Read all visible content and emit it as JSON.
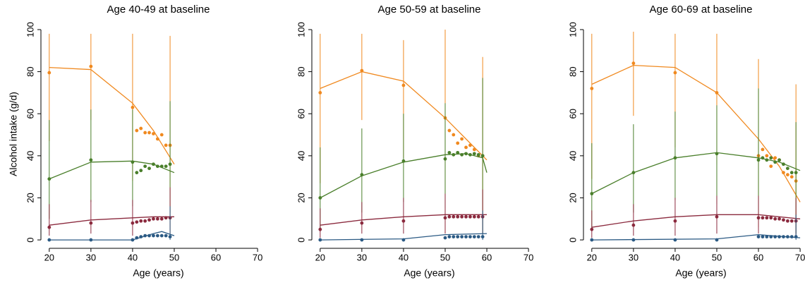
{
  "chart_data": [
    {
      "type": "scatter-line",
      "title": "Age 40-49 at baseline",
      "x_label": "Age (years)",
      "y_label": "Alcohol intake (g/d)",
      "xlim": [
        18,
        71
      ],
      "ylim": [
        -4,
        102
      ],
      "xticks": [
        20,
        30,
        40,
        50,
        60,
        70
      ],
      "yticks": [
        0,
        20,
        40,
        60,
        80,
        100
      ],
      "series": [
        {
          "color": "#f0891f",
          "x": [
            20,
            30,
            40,
            41,
            42,
            43,
            44,
            45,
            46,
            47,
            48,
            49
          ],
          "values": [
            79.5,
            82.5,
            63,
            52,
            53,
            51,
            51,
            50.5,
            48,
            50,
            45,
            45
          ],
          "line_x": [
            20,
            30,
            40,
            45,
            50
          ],
          "line_values": [
            82,
            81,
            65,
            52,
            36
          ],
          "bar_x": [
            20,
            30,
            40,
            49
          ],
          "bar_low": [
            47,
            57,
            28,
            2
          ],
          "bar_high": [
            98,
            98,
            98,
            97
          ]
        },
        {
          "color": "#4a7f2b",
          "x": [
            20,
            30,
            40,
            41,
            42,
            43,
            44,
            45,
            46,
            47,
            48,
            49
          ],
          "values": [
            29,
            38,
            37,
            32,
            33,
            35,
            34,
            36,
            35,
            35,
            35,
            36
          ],
          "line_x": [
            20,
            30,
            40,
            45,
            50
          ],
          "line_values": [
            29,
            37,
            37.5,
            36,
            32
          ],
          "bar_x": [
            20,
            30,
            40,
            49
          ],
          "bar_low": [
            10,
            18,
            16,
            13
          ],
          "bar_high": [
            57,
            62,
            62,
            66
          ]
        },
        {
          "color": "#8b2a3e",
          "x": [
            20,
            30,
            40,
            41,
            42,
            43,
            44,
            45,
            46,
            47,
            48,
            49
          ],
          "values": [
            6,
            8,
            8,
            8.5,
            9,
            9,
            9.5,
            10,
            10,
            10,
            10.5,
            10.5
          ],
          "line_x": [
            20,
            30,
            40,
            45,
            50
          ],
          "line_values": [
            7,
            9.5,
            10.5,
            11,
            11
          ],
          "bar_x": [
            20,
            30,
            40,
            49
          ],
          "bar_low": [
            2,
            3,
            2,
            3
          ],
          "bar_high": [
            17,
            19,
            19,
            25
          ]
        },
        {
          "color": "#2b5a84",
          "x": [
            20,
            30,
            40,
            41,
            42,
            43,
            44,
            45,
            46,
            47,
            48,
            49
          ],
          "values": [
            0,
            0,
            0,
            1,
            1.5,
            2,
            2,
            2,
            2,
            2,
            2,
            1.5
          ],
          "line_x": [
            20,
            30,
            40,
            45,
            47,
            50
          ],
          "line_values": [
            0,
            0,
            0,
            3,
            4,
            2
          ],
          "bar_x": [
            49
          ],
          "bar_low": [
            0
          ],
          "bar_high": [
            16
          ]
        }
      ]
    },
    {
      "type": "scatter-line",
      "title": "Age 50-59 at baseline",
      "x_label": "Age (years)",
      "xlim": [
        18,
        71
      ],
      "ylim": [
        -4,
        102
      ],
      "xticks": [
        20,
        30,
        40,
        50,
        60,
        70
      ],
      "yticks": [
        0,
        20,
        40,
        60,
        80,
        100
      ],
      "series": [
        {
          "color": "#f0891f",
          "x": [
            20,
            30,
            40,
            50,
            51,
            52,
            53,
            54,
            55,
            56,
            57,
            58,
            59
          ],
          "values": [
            70,
            80.5,
            73.5,
            58,
            52,
            50,
            46,
            48,
            44,
            45,
            43,
            40,
            40
          ],
          "line_x": [
            20,
            30,
            40,
            50,
            55,
            60
          ],
          "line_values": [
            72,
            80,
            75.5,
            58,
            48,
            38
          ],
          "bar_x": [
            20,
            30,
            40,
            50,
            59
          ],
          "bar_low": [
            27,
            57,
            39,
            3,
            3
          ],
          "bar_high": [
            98,
            98,
            95,
            100,
            87
          ]
        },
        {
          "color": "#4a7f2b",
          "x": [
            20,
            30,
            40,
            50,
            51,
            52,
            53,
            54,
            55,
            56,
            57,
            58,
            59
          ],
          "values": [
            20,
            31,
            37.5,
            38.5,
            41.5,
            40.5,
            41.5,
            40.5,
            41,
            40.5,
            41,
            40.5,
            40
          ],
          "line_x": [
            20,
            30,
            40,
            50,
            55,
            59,
            60
          ],
          "line_values": [
            20,
            30.5,
            37,
            40.5,
            41,
            39,
            32
          ],
          "bar_x": [
            20,
            30,
            40,
            50,
            59
          ],
          "bar_low": [
            4,
            13,
            18,
            15,
            3
          ],
          "bar_high": [
            44,
            53,
            60,
            65,
            77
          ]
        },
        {
          "color": "#8b2a3e",
          "x": [
            20,
            30,
            40,
            50,
            51,
            52,
            53,
            54,
            55,
            56,
            57,
            58,
            59
          ],
          "values": [
            5,
            8,
            9,
            10.5,
            11,
            11,
            11,
            11,
            11,
            11,
            11,
            11,
            11
          ],
          "line_x": [
            20,
            30,
            40,
            50,
            60
          ],
          "line_values": [
            7,
            9.5,
            11,
            12,
            12
          ],
          "bar_x": [
            20,
            30,
            40,
            50,
            59
          ],
          "bar_low": [
            1,
            3,
            3,
            3,
            3
          ],
          "bar_high": [
            15,
            18,
            20,
            22,
            24
          ]
        },
        {
          "color": "#2b5a84",
          "x": [
            20,
            30,
            40,
            50,
            51,
            52,
            53,
            54,
            55,
            56,
            57,
            58,
            59
          ],
          "values": [
            0,
            0,
            0,
            1,
            1.5,
            1.5,
            1.5,
            1.5,
            1.5,
            1.5,
            1.5,
            1.5,
            1.5
          ],
          "line_x": [
            20,
            40,
            50,
            60
          ],
          "line_values": [
            0,
            0.5,
            2.5,
            3
          ],
          "bar_x": [
            59
          ],
          "bar_low": [
            0
          ],
          "bar_high": [
            14
          ]
        }
      ]
    },
    {
      "type": "scatter-line",
      "title": "Age 60-69 at baseline",
      "x_label": "Age (years)",
      "xlim": [
        18,
        71
      ],
      "ylim": [
        -4,
        102
      ],
      "xticks": [
        20,
        30,
        40,
        50,
        60,
        70
      ],
      "yticks": [
        0,
        20,
        40,
        60,
        80,
        100
      ],
      "series": [
        {
          "color": "#f0891f",
          "x": [
            20,
            30,
            40,
            50,
            60,
            61,
            62,
            63,
            64,
            65,
            66,
            67,
            68,
            69
          ],
          "values": [
            72,
            84,
            79.5,
            70,
            40,
            43,
            40,
            35,
            39,
            38,
            32,
            31,
            30,
            28
          ],
          "line_x": [
            20,
            30,
            40,
            50,
            60,
            65,
            70
          ],
          "line_values": [
            74,
            83,
            82,
            70,
            48,
            35,
            18
          ],
          "bar_x": [
            20,
            30,
            40,
            50,
            60,
            69
          ],
          "bar_low": [
            29,
            59,
            44,
            36,
            6,
            3
          ],
          "bar_high": [
            98,
            99,
            98,
            98,
            86,
            74
          ]
        },
        {
          "color": "#4a7f2b",
          "x": [
            20,
            30,
            40,
            50,
            60,
            61,
            62,
            63,
            64,
            65,
            66,
            67,
            68,
            69
          ],
          "values": [
            22,
            32,
            39,
            41,
            38,
            39,
            38,
            39,
            37,
            38,
            36,
            34,
            32,
            32
          ],
          "line_x": [
            20,
            30,
            40,
            50,
            60,
            65,
            70
          ],
          "line_values": [
            22,
            32,
            39,
            41.5,
            39,
            37,
            33
          ],
          "bar_x": [
            20,
            30,
            40,
            50,
            60,
            69
          ],
          "bar_low": [
            5,
            13,
            19,
            17,
            9,
            3
          ],
          "bar_high": [
            46,
            55,
            61,
            64,
            72,
            56
          ]
        },
        {
          "color": "#8b2a3e",
          "x": [
            20,
            30,
            40,
            50,
            60,
            61,
            62,
            63,
            64,
            65,
            66,
            67,
            68,
            69
          ],
          "values": [
            5,
            7,
            9,
            11,
            10.5,
            10.5,
            10.5,
            10.5,
            10,
            10,
            9.5,
            9,
            9,
            9
          ],
          "line_x": [
            20,
            30,
            40,
            50,
            60,
            70
          ],
          "line_values": [
            6,
            9,
            11,
            12,
            12,
            10
          ],
          "bar_x": [
            20,
            30,
            40,
            50,
            60,
            69
          ],
          "bar_low": [
            1,
            2,
            2,
            3,
            3,
            2
          ],
          "bar_high": [
            14,
            17,
            20,
            21,
            21,
            20
          ]
        },
        {
          "color": "#2b5a84",
          "x": [
            20,
            30,
            40,
            50,
            60,
            61,
            62,
            63,
            64,
            65,
            66,
            67,
            68,
            69
          ],
          "values": [
            0,
            0,
            0,
            0,
            1.5,
            1.5,
            1.5,
            1.5,
            1.5,
            1.5,
            1.5,
            1.5,
            1.5,
            1.5
          ],
          "line_x": [
            20,
            50,
            60,
            70
          ],
          "line_values": [
            0,
            0.5,
            2.5,
            1
          ],
          "bar_x": [
            69
          ],
          "bar_low": [
            0
          ],
          "bar_high": [
            12
          ]
        }
      ]
    }
  ]
}
